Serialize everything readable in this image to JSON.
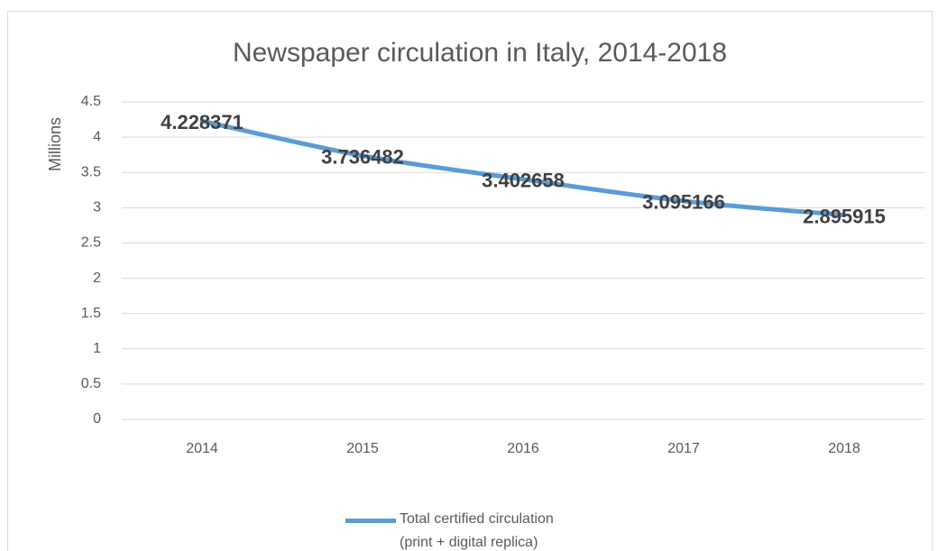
{
  "chart_data": {
    "type": "line",
    "title": "Newspaper circulation in Italy, 2014-2018",
    "y_label": "Millions",
    "categories": [
      "2014",
      "2015",
      "2016",
      "2017",
      "2018"
    ],
    "series": [
      {
        "name": "Total certified circulation (print + digital replica)",
        "color": "#5b9bd5",
        "values": [
          4.228371,
          3.736482,
          3.402658,
          3.095166,
          2.895915
        ]
      }
    ],
    "ylim": [
      0,
      4.5
    ],
    "yticks": [
      0,
      0.5,
      1,
      1.5,
      2,
      2.5,
      3,
      3.5,
      4,
      4.5
    ],
    "grid": true,
    "legend": "bottom",
    "data_labels": true
  }
}
